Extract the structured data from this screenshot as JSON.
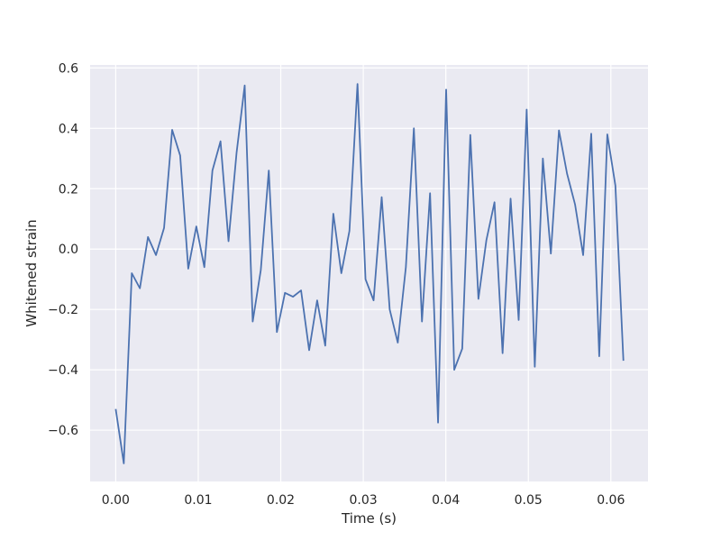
{
  "chart_data": {
    "type": "line",
    "title": "",
    "xlabel": "Time (s)",
    "ylabel": "Whitened strain",
    "xlim": [
      -0.0031,
      0.0645
    ],
    "ylim": [
      -0.77,
      0.61
    ],
    "grid": true,
    "legend": "none",
    "background_color": "#eaeaf2",
    "grid_color": "#ffffff",
    "x_ticks": [
      0.0,
      0.01,
      0.02,
      0.03,
      0.04,
      0.05,
      0.06
    ],
    "x_tick_labels": [
      "0.00",
      "0.01",
      "0.02",
      "0.03",
      "0.04",
      "0.05",
      "0.06"
    ],
    "y_ticks": [
      -0.6,
      -0.4,
      -0.2,
      0.0,
      0.2,
      0.4,
      0.6
    ],
    "y_tick_labels": [
      "−0.6",
      "−0.4",
      "−0.2",
      "0.0",
      "0.2",
      "0.4",
      "0.6"
    ],
    "series": [
      {
        "color": "#4c72b0",
        "x": [
          0.0,
          0.00098,
          0.00195,
          0.00293,
          0.00391,
          0.00488,
          0.00586,
          0.00684,
          0.00781,
          0.00879,
          0.00977,
          0.01074,
          0.01172,
          0.0127,
          0.01367,
          0.01465,
          0.01563,
          0.0166,
          0.01758,
          0.01855,
          0.01953,
          0.02051,
          0.02148,
          0.02246,
          0.02344,
          0.02441,
          0.02539,
          0.02637,
          0.02734,
          0.02832,
          0.0293,
          0.03027,
          0.03125,
          0.03223,
          0.0332,
          0.03418,
          0.03516,
          0.03613,
          0.03711,
          0.03809,
          0.03906,
          0.04004,
          0.04102,
          0.04199,
          0.04297,
          0.04395,
          0.04492,
          0.0459,
          0.04688,
          0.04785,
          0.04883,
          0.0498,
          0.05078,
          0.05176,
          0.05273,
          0.05371,
          0.05469,
          0.05566,
          0.05664,
          0.05762,
          0.05859,
          0.05957,
          0.06055,
          0.06152
        ],
        "y": [
          -0.53,
          -0.71,
          -0.08,
          -0.13,
          0.04,
          -0.02,
          0.07,
          0.395,
          0.31,
          -0.065,
          0.075,
          -0.06,
          0.26,
          0.357,
          0.026,
          0.32,
          0.542,
          -0.24,
          -0.07,
          0.26,
          -0.275,
          -0.145,
          -0.158,
          -0.137,
          -0.335,
          -0.17,
          -0.32,
          0.117,
          -0.08,
          0.06,
          0.547,
          -0.1,
          -0.17,
          0.172,
          -0.2,
          -0.31,
          -0.06,
          0.4,
          -0.24,
          0.185,
          -0.575,
          0.528,
          -0.4,
          -0.33,
          0.378,
          -0.165,
          0.03,
          0.155,
          -0.345,
          0.167,
          -0.235,
          0.462,
          -0.39,
          0.3,
          -0.015,
          0.393,
          0.25,
          0.148,
          -0.02,
          0.382,
          -0.355,
          0.38,
          0.21,
          -0.37
        ]
      }
    ]
  }
}
